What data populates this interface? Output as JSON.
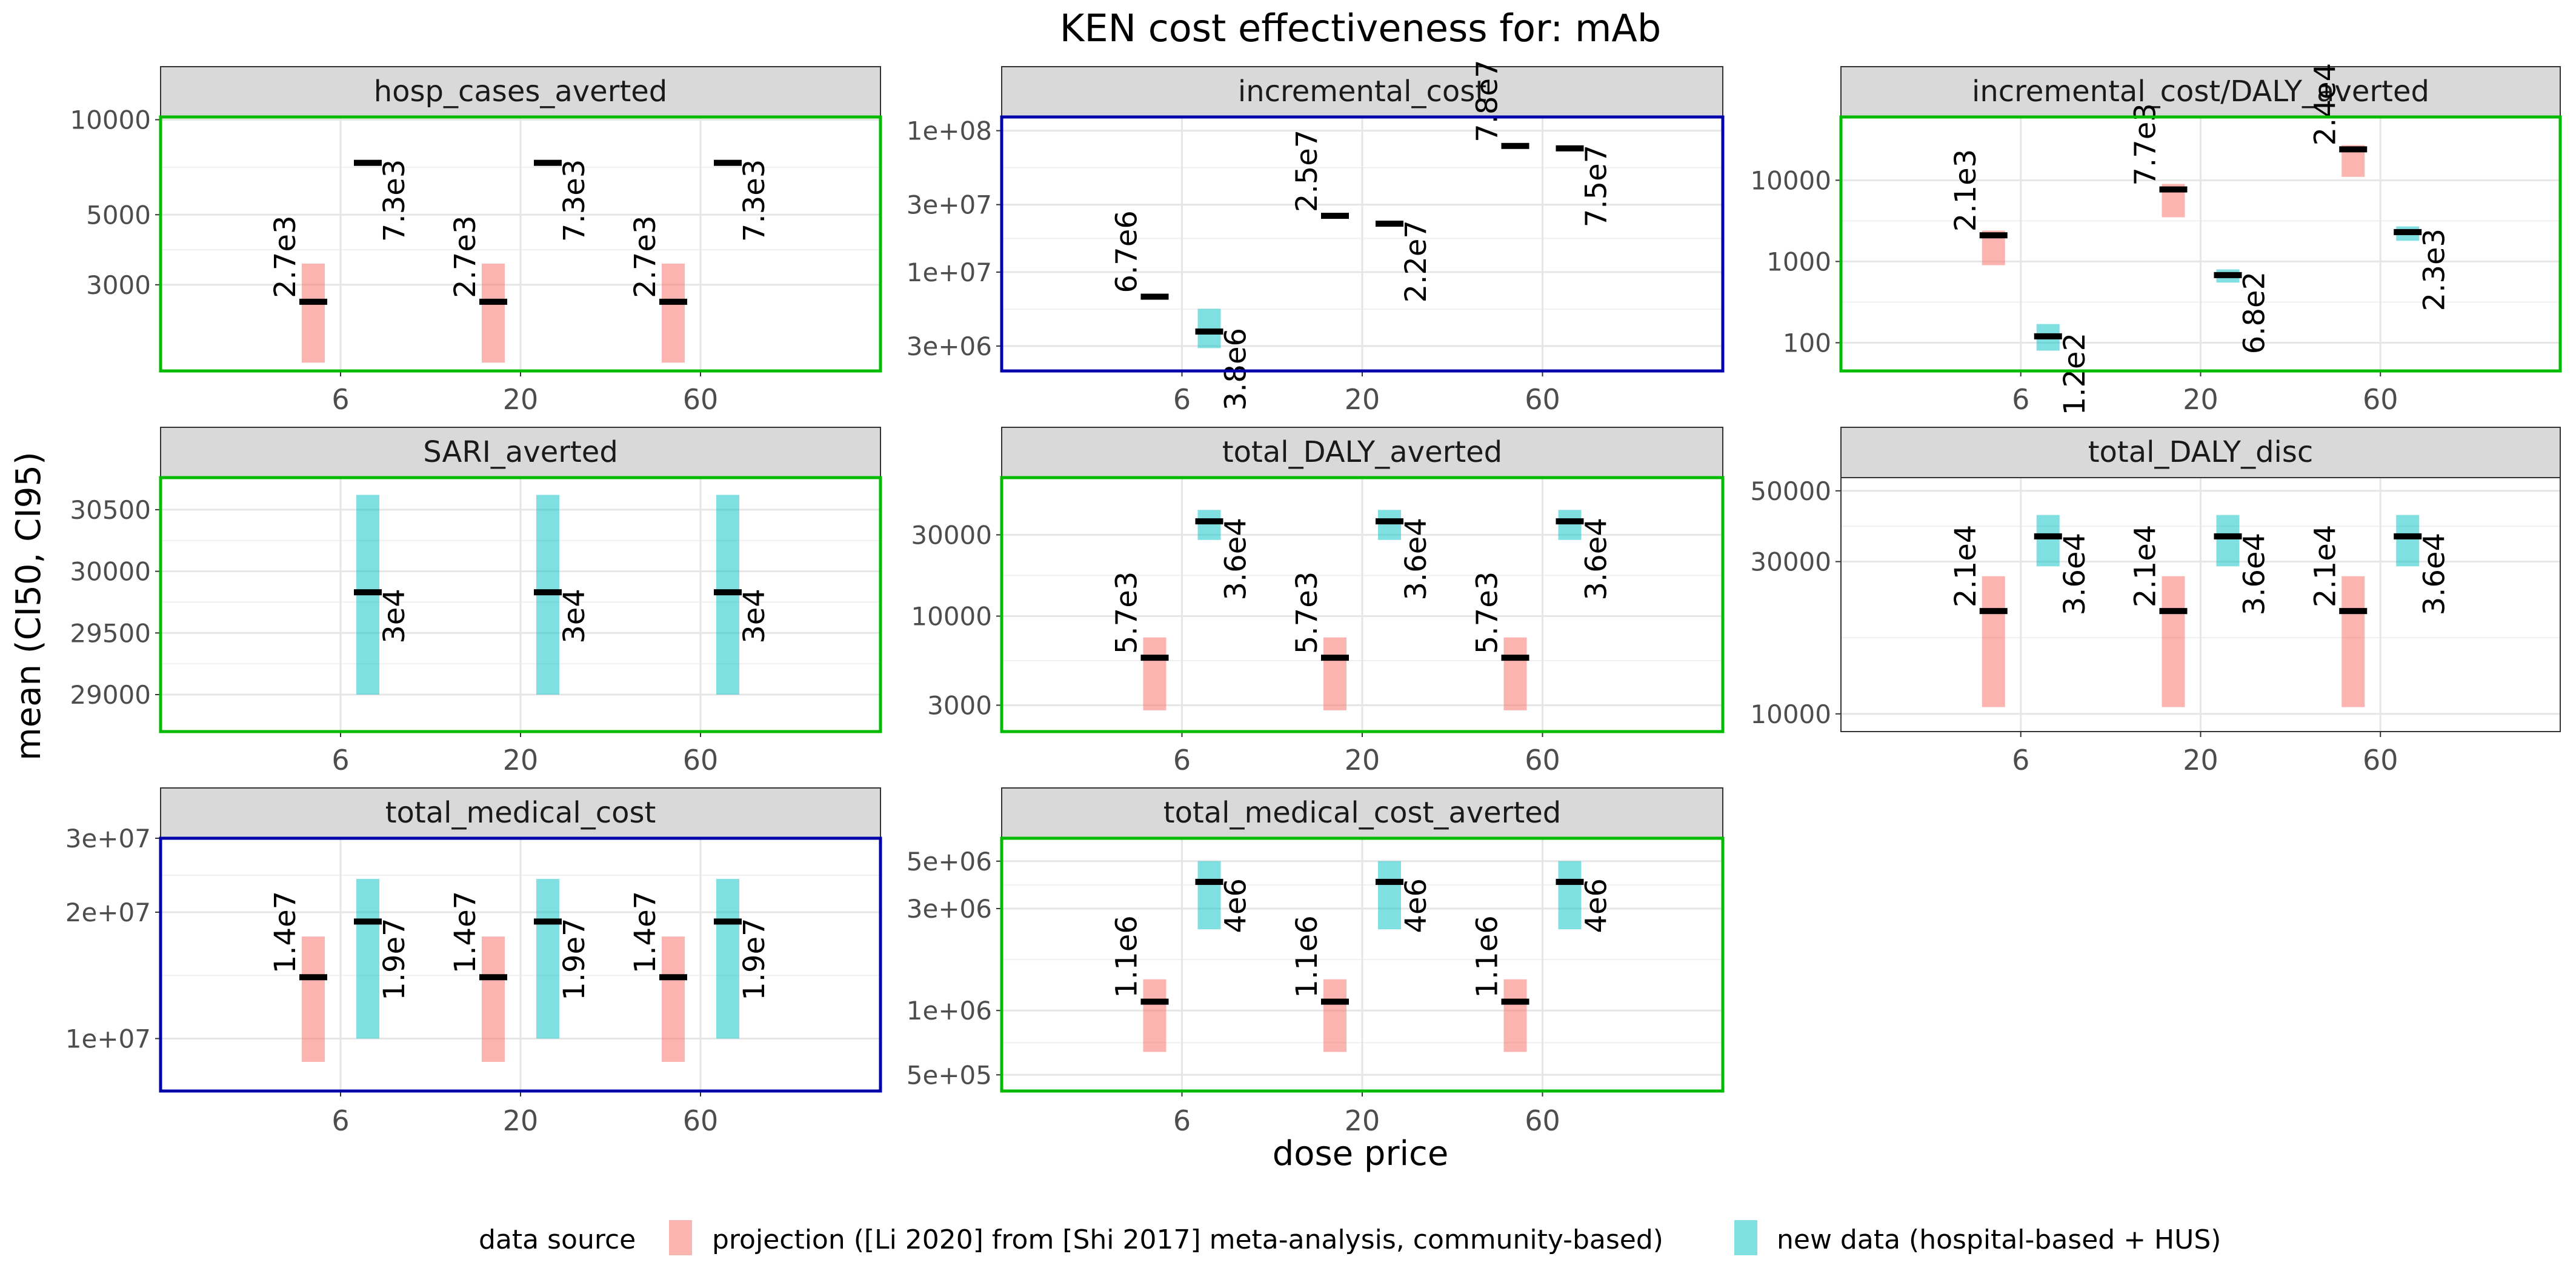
{
  "title": "KEN cost effectiveness for: mAb",
  "xlabel": "dose price",
  "ylabel": "mean (CI50, CI95)",
  "legend": {
    "title": "data source",
    "items": [
      {
        "label": "projection ([Li 2020] from [Shi 2017] meta-analysis, community-based)",
        "color": "#f8766d"
      },
      {
        "label": "new data (hospital-based + HUS)",
        "color": "#00bfc4"
      }
    ]
  },
  "colors": {
    "projection": "#f8766d",
    "new_data": "#00bfc4",
    "border_green": "#00bb00",
    "border_blue": "#0000aa",
    "strip": "#d9d9d9",
    "mean_bar": "#000000"
  },
  "chart_data": [
    {
      "type": "bar",
      "panel": "hosp_cases_averted",
      "categories": [
        "6",
        "20",
        "60"
      ],
      "scale": "log",
      "ylim": [
        1600,
        10200
      ],
      "yticks": [
        {
          "v": 3000,
          "l": "3000"
        },
        {
          "v": 5000,
          "l": "5000"
        },
        {
          "v": 10000,
          "l": "10000"
        }
      ],
      "border": "green",
      "series": [
        {
          "source": "projection",
          "values": [
            {
              "mean": 2650,
              "lo": 1700,
              "hi": 3500,
              "label": "2.7e3"
            },
            {
              "mean": 2650,
              "lo": 1700,
              "hi": 3500,
              "label": "2.7e3"
            },
            {
              "mean": 2650,
              "lo": 1700,
              "hi": 3500,
              "label": "2.7e3"
            }
          ]
        },
        {
          "source": "new_data",
          "values": [
            {
              "mean": 7300,
              "lo": null,
              "hi": null,
              "label": "7.3e3"
            },
            {
              "mean": 7300,
              "lo": null,
              "hi": null,
              "label": "7.3e3"
            },
            {
              "mean": 7300,
              "lo": null,
              "hi": null,
              "label": "7.3e3"
            }
          ]
        }
      ]
    },
    {
      "type": "bar",
      "panel": "incremental_cost",
      "categories": [
        "6",
        "20",
        "60"
      ],
      "scale": "log",
      "ylim": [
        2000000,
        125000000
      ],
      "yticks": [
        {
          "v": 3000000,
          "l": "3e+06"
        },
        {
          "v": 10000000,
          "l": "1e+07"
        },
        {
          "v": 30000000,
          "l": "3e+07"
        },
        {
          "v": 100000000,
          "l": "1e+08"
        }
      ],
      "border": "blue",
      "series": [
        {
          "source": "projection",
          "values": [
            {
              "mean": 6700000,
              "lo": null,
              "hi": null,
              "label": "6.7e6"
            },
            {
              "mean": 25000000,
              "lo": null,
              "hi": null,
              "label": "2.5e7"
            },
            {
              "mean": 78000000,
              "lo": null,
              "hi": null,
              "label": "7.8e7"
            }
          ]
        },
        {
          "source": "new_data",
          "values": [
            {
              "mean": 3800000,
              "lo": 2900000,
              "hi": 5500000,
              "label": "3.8e6"
            },
            {
              "mean": 22000000,
              "lo": null,
              "hi": null,
              "label": "2.2e7"
            },
            {
              "mean": 75000000,
              "lo": null,
              "hi": null,
              "label": "7.5e7"
            }
          ]
        }
      ]
    },
    {
      "type": "bar",
      "panel": "incremental_cost/DALY_averted",
      "categories": [
        "6",
        "20",
        "60"
      ],
      "scale": "log",
      "ylim": [
        45,
        60000
      ],
      "yticks": [
        {
          "v": 100,
          "l": "100"
        },
        {
          "v": 1000,
          "l": "1000"
        },
        {
          "v": 10000,
          "l": "10000"
        }
      ],
      "border": "green",
      "series": [
        {
          "source": "projection",
          "values": [
            {
              "mean": 2100,
              "lo": 900,
              "hi": 2400,
              "label": "2.1e3"
            },
            {
              "mean": 7700,
              "lo": 3500,
              "hi": 9000,
              "label": "7.7e3"
            },
            {
              "mean": 24000,
              "lo": 11000,
              "hi": 27000,
              "label": "2.4e4"
            }
          ]
        },
        {
          "source": "new_data",
          "values": [
            {
              "mean": 120,
              "lo": 80,
              "hi": 170,
              "label": "1.2e2"
            },
            {
              "mean": 680,
              "lo": 550,
              "hi": 800,
              "label": "6.8e2"
            },
            {
              "mean": 2300,
              "lo": 1800,
              "hi": 2700,
              "label": "2.3e3"
            }
          ]
        }
      ]
    },
    {
      "type": "bar",
      "panel": "SARI_averted",
      "categories": [
        "6",
        "20",
        "60"
      ],
      "scale": "linear",
      "ylim": [
        28700,
        30760
      ],
      "yticks": [
        {
          "v": 29000,
          "l": "29000"
        },
        {
          "v": 29500,
          "l": "29500"
        },
        {
          "v": 30000,
          "l": "30000"
        },
        {
          "v": 30500,
          "l": "30500"
        }
      ],
      "border": "green",
      "series": [
        {
          "source": "projection",
          "values": [
            null,
            null,
            null
          ]
        },
        {
          "source": "new_data",
          "values": [
            {
              "mean": 29830,
              "lo": 29000,
              "hi": 30620,
              "label": "3e4"
            },
            {
              "mean": 29830,
              "lo": 29000,
              "hi": 30620,
              "label": "3e4"
            },
            {
              "mean": 29830,
              "lo": 29000,
              "hi": 30620,
              "label": "3e4"
            }
          ]
        }
      ]
    },
    {
      "type": "bar",
      "panel": "total_DALY_averted",
      "categories": [
        "6",
        "20",
        "60"
      ],
      "scale": "log",
      "ylim": [
        2100,
        65000
      ],
      "yticks": [
        {
          "v": 3000,
          "l": "3000"
        },
        {
          "v": 10000,
          "l": "10000"
        },
        {
          "v": 30000,
          "l": "30000"
        }
      ],
      "border": "green",
      "series": [
        {
          "source": "projection",
          "values": [
            {
              "mean": 5700,
              "lo": 2800,
              "hi": 7500,
              "label": "5.7e3"
            },
            {
              "mean": 5700,
              "lo": 2800,
              "hi": 7500,
              "label": "5.7e3"
            },
            {
              "mean": 5700,
              "lo": 2800,
              "hi": 7500,
              "label": "5.7e3"
            }
          ]
        },
        {
          "source": "new_data",
          "values": [
            {
              "mean": 36000,
              "lo": 28000,
              "hi": 42000,
              "label": "3.6e4"
            },
            {
              "mean": 36000,
              "lo": 28000,
              "hi": 42000,
              "label": "3.6e4"
            },
            {
              "mean": 36000,
              "lo": 28000,
              "hi": 42000,
              "label": "3.6e4"
            }
          ]
        }
      ]
    },
    {
      "type": "bar",
      "panel": "total_DALY_disc",
      "categories": [
        "6",
        "20",
        "60"
      ],
      "scale": "log",
      "ylim": [
        8800,
        55000
      ],
      "yticks": [
        {
          "v": 10000,
          "l": "10000"
        },
        {
          "v": 30000,
          "l": "30000"
        },
        {
          "v": 50000,
          "l": "50000"
        }
      ],
      "border": "none",
      "series": [
        {
          "source": "projection",
          "values": [
            {
              "mean": 21000,
              "lo": 10500,
              "hi": 27000,
              "label": "2.1e4"
            },
            {
              "mean": 21000,
              "lo": 10500,
              "hi": 27000,
              "label": "2.1e4"
            },
            {
              "mean": 21000,
              "lo": 10500,
              "hi": 27000,
              "label": "2.1e4"
            }
          ]
        },
        {
          "source": "new_data",
          "values": [
            {
              "mean": 36000,
              "lo": 29000,
              "hi": 42000,
              "label": "3.6e4"
            },
            {
              "mean": 36000,
              "lo": 29000,
              "hi": 42000,
              "label": "3.6e4"
            },
            {
              "mean": 36000,
              "lo": 29000,
              "hi": 42000,
              "label": "3.6e4"
            }
          ]
        }
      ]
    },
    {
      "type": "bar",
      "panel": "total_medical_cost",
      "categories": [
        "6",
        "20",
        "60"
      ],
      "scale": "log",
      "ylim": [
        7500000,
        30000000
      ],
      "yticks": [
        {
          "v": 10000000,
          "l": "1e+07"
        },
        {
          "v": 20000000,
          "l": "2e+07"
        },
        {
          "v": 30000000,
          "l": "3e+07"
        }
      ],
      "border": "blue",
      "series": [
        {
          "source": "projection",
          "values": [
            {
              "mean": 14000000,
              "lo": 8800000,
              "hi": 17500000,
              "label": "1.4e7"
            },
            {
              "mean": 14000000,
              "lo": 8800000,
              "hi": 17500000,
              "label": "1.4e7"
            },
            {
              "mean": 14000000,
              "lo": 8800000,
              "hi": 17500000,
              "label": "1.4e7"
            }
          ]
        },
        {
          "source": "new_data",
          "values": [
            {
              "mean": 19000000,
              "lo": 10000000,
              "hi": 24000000,
              "label": "1.9e7"
            },
            {
              "mean": 19000000,
              "lo": 10000000,
              "hi": 24000000,
              "label": "1.9e7"
            },
            {
              "mean": 19000000,
              "lo": 10000000,
              "hi": 24000000,
              "label": "1.9e7"
            }
          ]
        }
      ]
    },
    {
      "type": "bar",
      "panel": "total_medical_cost_averted",
      "categories": [
        "6",
        "20",
        "60"
      ],
      "scale": "log",
      "ylim": [
        420000,
        6400000
      ],
      "yticks": [
        {
          "v": 500000,
          "l": "5e+05"
        },
        {
          "v": 1000000,
          "l": "1e+06"
        },
        {
          "v": 3000000,
          "l": "3e+06"
        },
        {
          "v": 5000000,
          "l": "5e+06"
        }
      ],
      "border": "green",
      "series": [
        {
          "source": "projection",
          "values": [
            {
              "mean": 1100000,
              "lo": 640000,
              "hi": 1400000,
              "label": "1.1e6"
            },
            {
              "mean": 1100000,
              "lo": 640000,
              "hi": 1400000,
              "label": "1.1e6"
            },
            {
              "mean": 1100000,
              "lo": 640000,
              "hi": 1400000,
              "label": "1.1e6"
            }
          ]
        },
        {
          "source": "new_data",
          "values": [
            {
              "mean": 4000000,
              "lo": 2400000,
              "hi": 5000000,
              "label": "4e6"
            },
            {
              "mean": 4000000,
              "lo": 2400000,
              "hi": 5000000,
              "label": "4e6"
            },
            {
              "mean": 4000000,
              "lo": 2400000,
              "hi": 5000000,
              "label": "4e6"
            }
          ]
        }
      ]
    }
  ]
}
